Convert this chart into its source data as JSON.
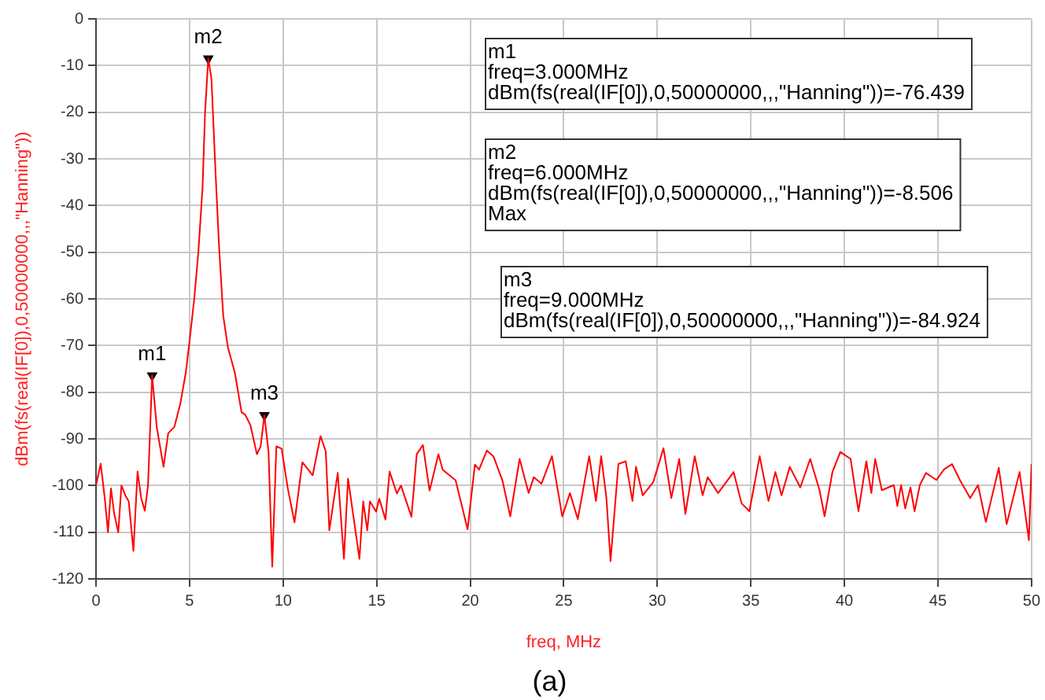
{
  "chart_data": {
    "type": "line",
    "xlabel": "freq, MHz",
    "ylabel": "dBm(fs(real(IF[0]),0,50000000,,,\"Hanning\"))",
    "xlim": [
      0,
      50
    ],
    "xticks": [
      0,
      5,
      10,
      15,
      20,
      25,
      30,
      35,
      40,
      45,
      50
    ],
    "ylim": [
      -120,
      0
    ],
    "yticks": [
      -120,
      -110,
      -100,
      -90,
      -80,
      -70,
      -60,
      -50,
      -40,
      -30,
      -20,
      -10,
      0
    ],
    "grid": true,
    "legend": false,
    "marker": "none",
    "line_style": "solid",
    "series": [
      {
        "color": "#ff0000",
        "x": [
          0,
          0.25,
          0.47,
          0.64,
          0.8,
          0.97,
          1.19,
          1.36,
          1.58,
          1.75,
          2.0,
          2.22,
          2.42,
          2.61,
          2.78,
          3.0,
          3.25,
          3.61,
          3.86,
          4.19,
          4.5,
          4.8,
          5.0,
          5.25,
          5.47,
          5.69,
          5.83,
          6.0,
          6.17,
          6.39,
          6.58,
          6.8,
          7.05,
          7.42,
          7.78,
          7.97,
          8.25,
          8.6,
          8.8,
          9.0,
          9.22,
          9.42,
          9.64,
          9.92,
          10.25,
          10.61,
          11.03,
          11.58,
          12.0,
          12.28,
          12.47,
          12.92,
          13.25,
          13.47,
          14.08,
          14.28,
          14.5,
          14.64,
          14.97,
          15.14,
          15.47,
          15.69,
          16.08,
          16.3,
          16.86,
          17.14,
          17.47,
          17.83,
          18.3,
          18.53,
          19.22,
          19.86,
          20.25,
          20.47,
          20.89,
          21.25,
          21.72,
          22.14,
          22.64,
          23.12,
          23.4,
          23.81,
          24.37,
          24.92,
          25.33,
          25.75,
          26.36,
          26.72,
          27.0,
          27.28,
          27.5,
          27.92,
          28.31,
          28.67,
          28.86,
          29.22,
          29.78,
          30.33,
          30.75,
          31.17,
          31.5,
          32.0,
          32.42,
          32.69,
          33.25,
          34.08,
          34.5,
          34.92,
          35.47,
          35.94,
          36.31,
          36.64,
          37.08,
          37.64,
          38.17,
          38.67,
          38.94,
          39.36,
          39.78,
          40.33,
          40.75,
          41.17,
          41.44,
          41.64,
          42.0,
          42.64,
          42.83,
          43.03,
          43.25,
          43.53,
          43.75,
          44.03,
          44.36,
          44.92,
          45.33,
          45.75,
          46.17,
          46.72,
          47.14,
          47.56,
          48.25,
          48.67,
          49.36,
          49.86,
          50.0
        ],
        "values": [
          -100,
          -95.3,
          -102.8,
          -110,
          -100.6,
          -106,
          -110,
          -100,
          -102.2,
          -103.4,
          -114,
          -97,
          -102.8,
          -105.4,
          -100,
          -76.4,
          -87.6,
          -96,
          -88.8,
          -87.4,
          -82.6,
          -75.8,
          -69,
          -60,
          -50,
          -36.5,
          -20,
          -8.5,
          -12.8,
          -33,
          -49,
          -63.6,
          -70.4,
          -75.8,
          -84.3,
          -84.8,
          -87,
          -93.3,
          -91.6,
          -84.9,
          -92.7,
          -117.4,
          -91.6,
          -92.1,
          -100.6,
          -107.9,
          -95,
          -97.8,
          -89.4,
          -92.7,
          -109.6,
          -97.3,
          -115.7,
          -98.5,
          -115.7,
          -103.4,
          -109.6,
          -103.4,
          -105.6,
          -102.8,
          -107.3,
          -97,
          -101.7,
          -100,
          -106.7,
          -93.3,
          -91.3,
          -101.1,
          -93.3,
          -96.6,
          -98.9,
          -109.4,
          -95.5,
          -96.6,
          -92.5,
          -93.8,
          -98.9,
          -106.6,
          -94.3,
          -101.6,
          -98.2,
          -99.6,
          -93.7,
          -106.6,
          -101.6,
          -107.2,
          -93.7,
          -103.3,
          -93.7,
          -102.7,
          -116.2,
          -95.4,
          -94.8,
          -103.3,
          -96,
          -102.1,
          -99.3,
          -92,
          -102.7,
          -94.3,
          -106.1,
          -93.7,
          -102.1,
          -98.2,
          -101.6,
          -97.1,
          -103.8,
          -105.5,
          -93.7,
          -103.3,
          -97.1,
          -102.1,
          -96,
          -100.4,
          -94.3,
          -101,
          -106.6,
          -97.1,
          -92.8,
          -94.3,
          -105.5,
          -94.8,
          -101.6,
          -94.3,
          -101,
          -99.9,
          -104.4,
          -99.9,
          -104.9,
          -100.4,
          -105.5,
          -99.9,
          -97.3,
          -98.8,
          -96.5,
          -95.4,
          -98.8,
          -102.7,
          -99.9,
          -107.8,
          -96.2,
          -108.3,
          -97.1,
          -111.7,
          -95.4
        ]
      },
      {
        "type": "scatter",
        "color": "#000000",
        "marker": "triangle",
        "x": [
          3,
          6,
          9
        ],
        "values": [
          -76.439,
          -8.506,
          -84.924
        ]
      }
    ],
    "annotations": [
      {
        "text": "m1",
        "x": 3,
        "y": -76.439
      },
      {
        "text": "m2",
        "x": 6,
        "y": -8.506
      },
      {
        "text": "m3",
        "x": 9,
        "y": -84.924
      },
      "m1\nfreq=3.000MHz\ndBm(fs(real(IF[0]),0,50000000,,,\"Hanning\"))=-76.439",
      "m2\nfreq=6.000MHz\ndBm(fs(real(IF[0]),0,50000000,,,\"Hanning\"))=-8.506\nMax",
      "m3\nfreq=9.000MHz\ndBm(fs(real(IF[0]),0,50000000,,,\"Hanning\"))=-84.924",
      "(a)"
    ]
  }
}
